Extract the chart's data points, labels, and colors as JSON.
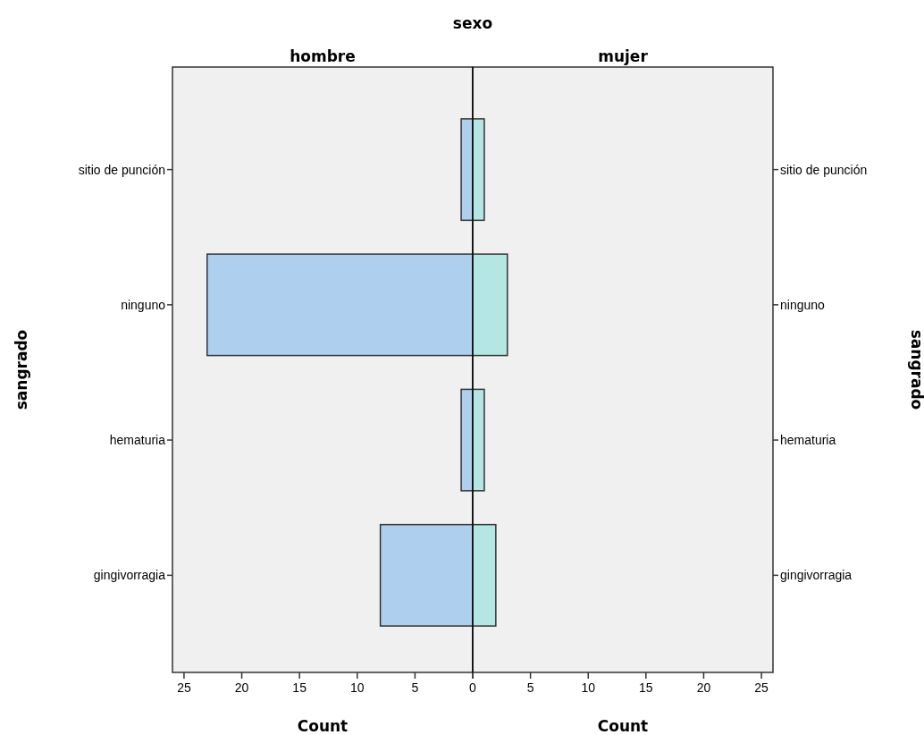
{
  "chart_data": [
    {
      "type": "bar",
      "orientation": "horizontal",
      "title": "hombre",
      "annotations": [
        "sexo"
      ],
      "xlabel": "Count",
      "ylabel": "sangrado",
      "categories": [
        "sitio de punción",
        "ninguno",
        "hematuria",
        "gingivorragia"
      ],
      "series": [
        {
          "color": "#aecfee",
          "values": [
            1,
            23,
            1,
            8
          ]
        }
      ],
      "xlim": [
        26,
        0
      ],
      "xticks": [
        25,
        20,
        15,
        10,
        5,
        0
      ],
      "grid": false
    },
    {
      "type": "bar",
      "orientation": "horizontal",
      "title": "mujer",
      "xlabel": "Count",
      "ylabel": "sangrado",
      "categories": [
        "sitio de punción",
        "ninguno",
        "hematuria",
        "gingivorragia"
      ],
      "series": [
        {
          "color": "#b4e6e4",
          "values": [
            1,
            3,
            1,
            2
          ]
        }
      ],
      "xlim": [
        0,
        26
      ],
      "xticks": [
        {
          "value": 0,
          "label": null
        },
        5,
        10,
        15,
        20,
        25
      ],
      "grid": false
    }
  ]
}
